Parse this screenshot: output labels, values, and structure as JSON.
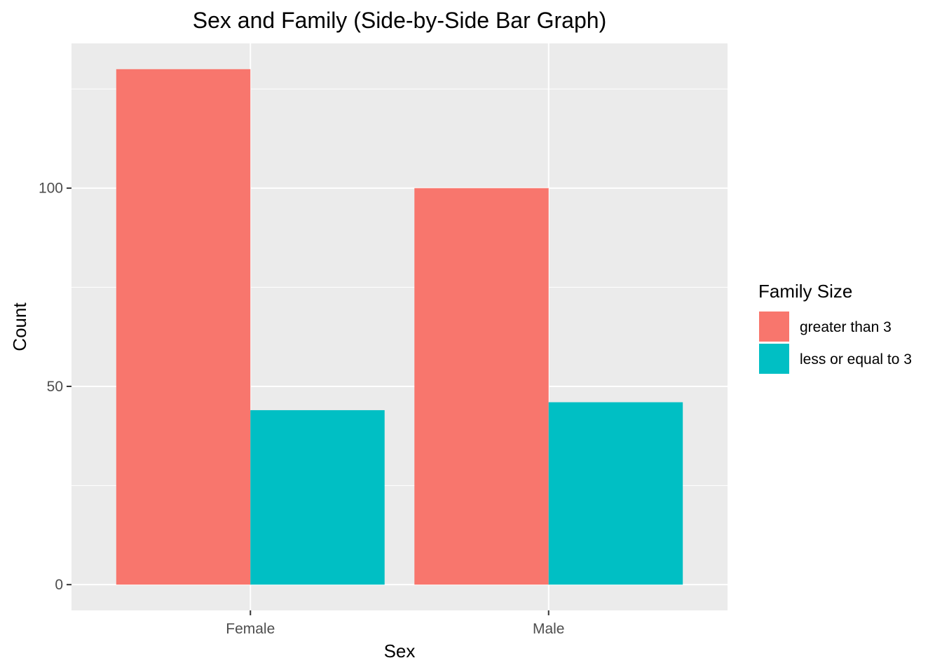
{
  "chart_data": {
    "type": "bar",
    "title": "Sex and Family (Side-by-Side Bar Graph)",
    "xlabel": "Sex",
    "ylabel": "Count",
    "categories": [
      "Female",
      "Male"
    ],
    "series": [
      {
        "name": "greater than 3",
        "color": "#F8766D",
        "values": [
          130,
          100
        ]
      },
      {
        "name": "less or equal to 3",
        "color": "#00BFC4",
        "values": [
          44,
          46
        ]
      }
    ],
    "ylim": [
      -6.5,
      136.5
    ],
    "yticks": [
      0,
      50,
      100
    ],
    "ytick_labels": [
      "0",
      "50",
      "100"
    ],
    "grid": true,
    "legend": {
      "title": "Family Size",
      "position": "right"
    },
    "panel_color": "#EBEBEB",
    "grid_color": "#FFFFFF",
    "axis_text_color": "#4D4D4D"
  }
}
